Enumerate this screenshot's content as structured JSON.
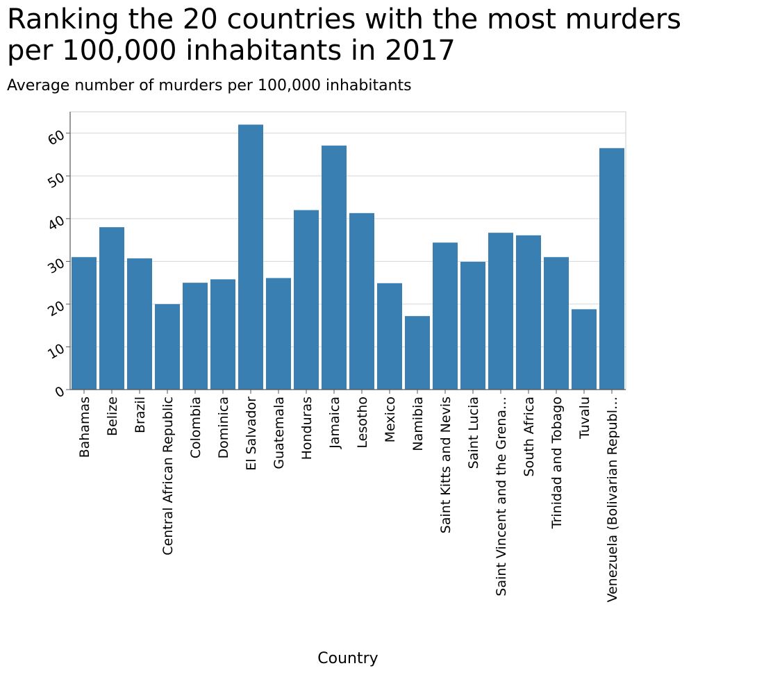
{
  "chart_data": {
    "type": "bar",
    "title": "Ranking the 20 countries with the most murders per 100,000 inhabitants in 2017",
    "title_lines": [
      "Ranking the 20 countries with the most murders",
      "per 100,000 inhabitants in 2017"
    ],
    "subtitle": "Average number of murders per 100,000 inhabitants",
    "xlabel": "Country",
    "ylabel": "",
    "ylim": [
      0,
      65
    ],
    "yticks": [
      0,
      10,
      20,
      30,
      40,
      50,
      60
    ],
    "grid": true,
    "bar_color": "#3a7fb1",
    "categories": [
      "Bahamas",
      "Belize",
      "Brazil",
      "Central African Republic",
      "Colombia",
      "Dominica",
      "El Salvador",
      "Guatemala",
      "Honduras",
      "Jamaica",
      "Lesotho",
      "Mexico",
      "Namibia",
      "Saint Kitts and Nevis",
      "Saint Lucia",
      "Saint Vincent and the Grena…",
      "South Africa",
      "Trinidad and Tobago",
      "Tuvalu",
      "Venezuela (Bolivarian Republ…"
    ],
    "values": [
      31,
      38,
      30.7,
      20,
      25,
      25.8,
      62,
      26.1,
      42,
      57.1,
      41.3,
      24.9,
      17.2,
      34.4,
      29.9,
      36.7,
      36.1,
      31,
      18.8,
      56.5
    ]
  }
}
